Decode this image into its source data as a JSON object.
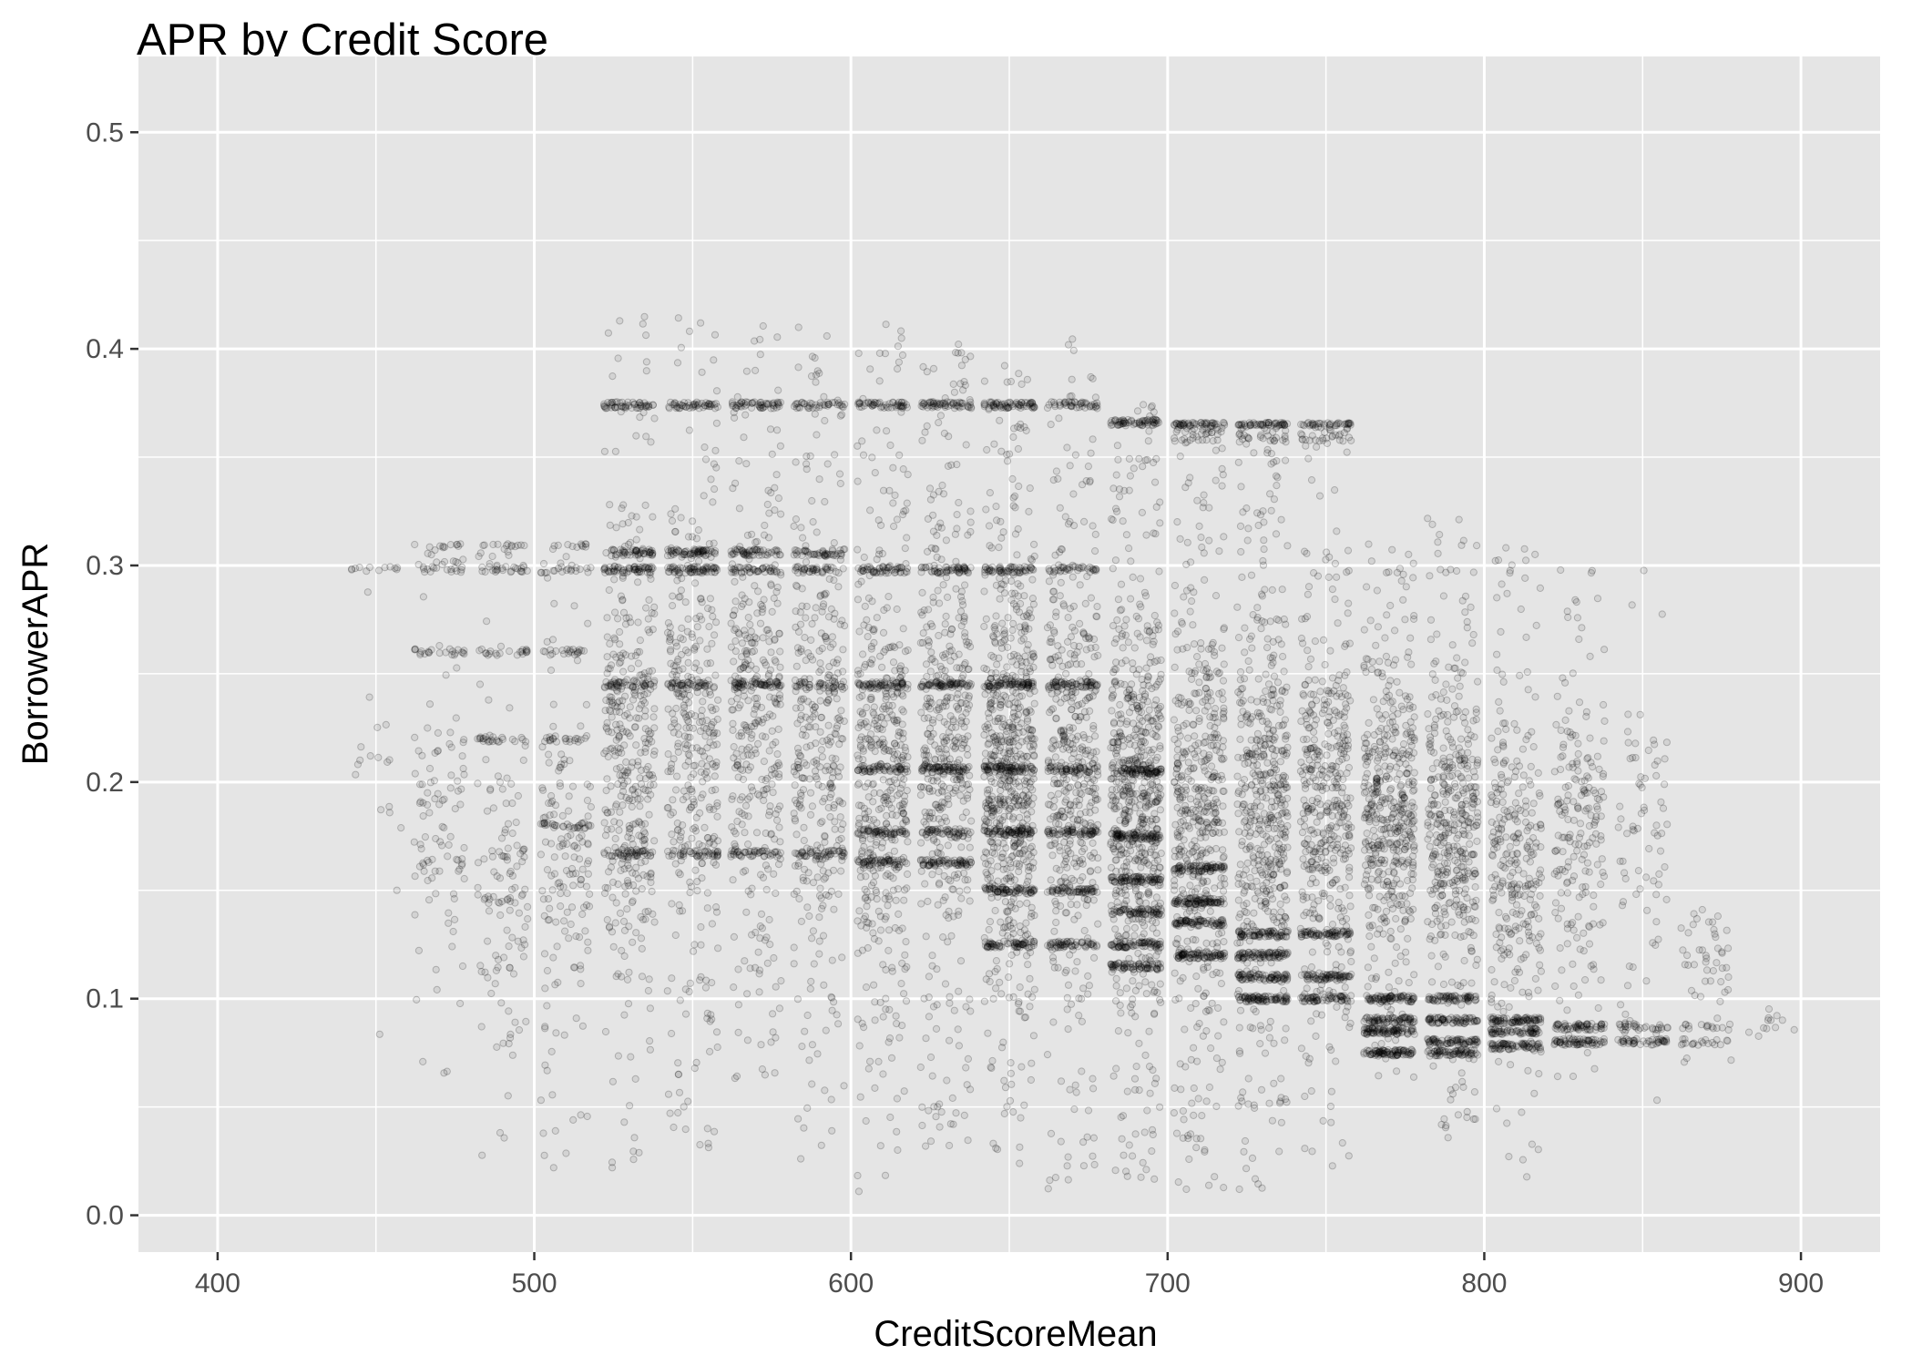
{
  "chart_data": {
    "type": "scatter",
    "title": "APR  by Credit Score",
    "xlabel": "CreditScoreMean",
    "ylabel": "BorrowerAPR",
    "xlim": [
      375,
      925
    ],
    "ylim": [
      -0.017,
      0.535
    ],
    "x_ticks": [
      400,
      500,
      600,
      700,
      800,
      900
    ],
    "x_tick_labels": [
      "400",
      "500",
      "600",
      "700",
      "800",
      "900"
    ],
    "y_ticks": [
      0.0,
      0.1,
      0.2,
      0.3,
      0.4,
      0.5
    ],
    "y_tick_labels": [
      "0.0",
      "0.1",
      "0.2",
      "0.3",
      "0.4",
      "0.5"
    ],
    "grid": true,
    "point_color": "#000000",
    "panel_color": "#e5e5e5",
    "clusters": [
      {
        "x": 450,
        "count": 30,
        "y_min": 0.08,
        "y_max": 0.31,
        "bands": [
          0.298
        ]
      },
      {
        "x": 470,
        "count": 160,
        "y_min": 0.06,
        "y_max": 0.31,
        "bands": [
          0.298,
          0.31,
          0.26
        ]
      },
      {
        "x": 490,
        "count": 210,
        "y_min": 0.01,
        "y_max": 0.31,
        "bands": [
          0.298,
          0.31,
          0.26,
          0.22
        ]
      },
      {
        "x": 510,
        "count": 260,
        "y_min": 0.02,
        "y_max": 0.31,
        "bands": [
          0.298,
          0.31,
          0.26,
          0.22,
          0.18
        ]
      },
      {
        "x": 530,
        "count": 650,
        "y_min": 0.01,
        "y_max": 0.415,
        "bands": [
          0.374,
          0.306,
          0.298,
          0.245,
          0.167
        ]
      },
      {
        "x": 550,
        "count": 620,
        "y_min": 0.03,
        "y_max": 0.415,
        "bands": [
          0.374,
          0.306,
          0.298,
          0.245,
          0.167
        ]
      },
      {
        "x": 570,
        "count": 600,
        "y_min": 0.06,
        "y_max": 0.415,
        "bands": [
          0.374,
          0.306,
          0.298,
          0.245,
          0.167
        ]
      },
      {
        "x": 590,
        "count": 560,
        "y_min": 0.02,
        "y_max": 0.415,
        "bands": [
          0.374,
          0.306,
          0.298,
          0.245,
          0.167
        ]
      },
      {
        "x": 610,
        "count": 780,
        "y_min": 0.01,
        "y_max": 0.415,
        "bands": [
          0.374,
          0.298,
          0.245,
          0.206,
          0.177,
          0.163
        ]
      },
      {
        "x": 630,
        "count": 800,
        "y_min": 0.03,
        "y_max": 0.405,
        "bands": [
          0.374,
          0.298,
          0.245,
          0.206,
          0.177,
          0.163
        ]
      },
      {
        "x": 650,
        "count": 1150,
        "y_min": 0.02,
        "y_max": 0.395,
        "bands": [
          0.374,
          0.298,
          0.245,
          0.206,
          0.177,
          0.15,
          0.125
        ]
      },
      {
        "x": 670,
        "count": 820,
        "y_min": 0.01,
        "y_max": 0.405,
        "bands": [
          0.374,
          0.298,
          0.245,
          0.206,
          0.177,
          0.15,
          0.125
        ]
      },
      {
        "x": 690,
        "count": 1150,
        "y_min": 0.015,
        "y_max": 0.375,
        "bands": [
          0.366,
          0.205,
          0.175,
          0.155,
          0.14,
          0.125,
          0.115
        ]
      },
      {
        "x": 710,
        "count": 900,
        "y_min": 0.01,
        "y_max": 0.366,
        "bands": [
          0.366,
          0.16,
          0.145,
          0.135,
          0.12
        ]
      },
      {
        "x": 730,
        "count": 920,
        "y_min": 0.01,
        "y_max": 0.366,
        "bands": [
          0.366,
          0.13,
          0.12,
          0.11,
          0.1
        ]
      },
      {
        "x": 750,
        "count": 720,
        "y_min": 0.02,
        "y_max": 0.366,
        "bands": [
          0.366,
          0.13,
          0.11,
          0.1
        ]
      },
      {
        "x": 770,
        "count": 820,
        "y_min": 0.06,
        "y_max": 0.31,
        "bands": [
          0.1,
          0.09,
          0.085,
          0.075
        ]
      },
      {
        "x": 790,
        "count": 720,
        "y_min": 0.035,
        "y_max": 0.325,
        "bands": [
          0.1,
          0.09,
          0.08,
          0.075
        ]
      },
      {
        "x": 810,
        "count": 520,
        "y_min": 0.015,
        "y_max": 0.31,
        "bands": [
          0.09,
          0.085,
          0.078
        ]
      },
      {
        "x": 830,
        "count": 330,
        "y_min": 0.06,
        "y_max": 0.3,
        "bands": [
          0.087,
          0.08
        ]
      },
      {
        "x": 850,
        "count": 150,
        "y_min": 0.05,
        "y_max": 0.31,
        "bands": [
          0.087,
          0.08
        ]
      },
      {
        "x": 870,
        "count": 80,
        "y_min": 0.065,
        "y_max": 0.17,
        "bands": [
          0.087,
          0.08
        ]
      },
      {
        "x": 890,
        "count": 12,
        "y_min": 0.075,
        "y_max": 0.1,
        "bands": [
          0.087
        ]
      }
    ]
  }
}
